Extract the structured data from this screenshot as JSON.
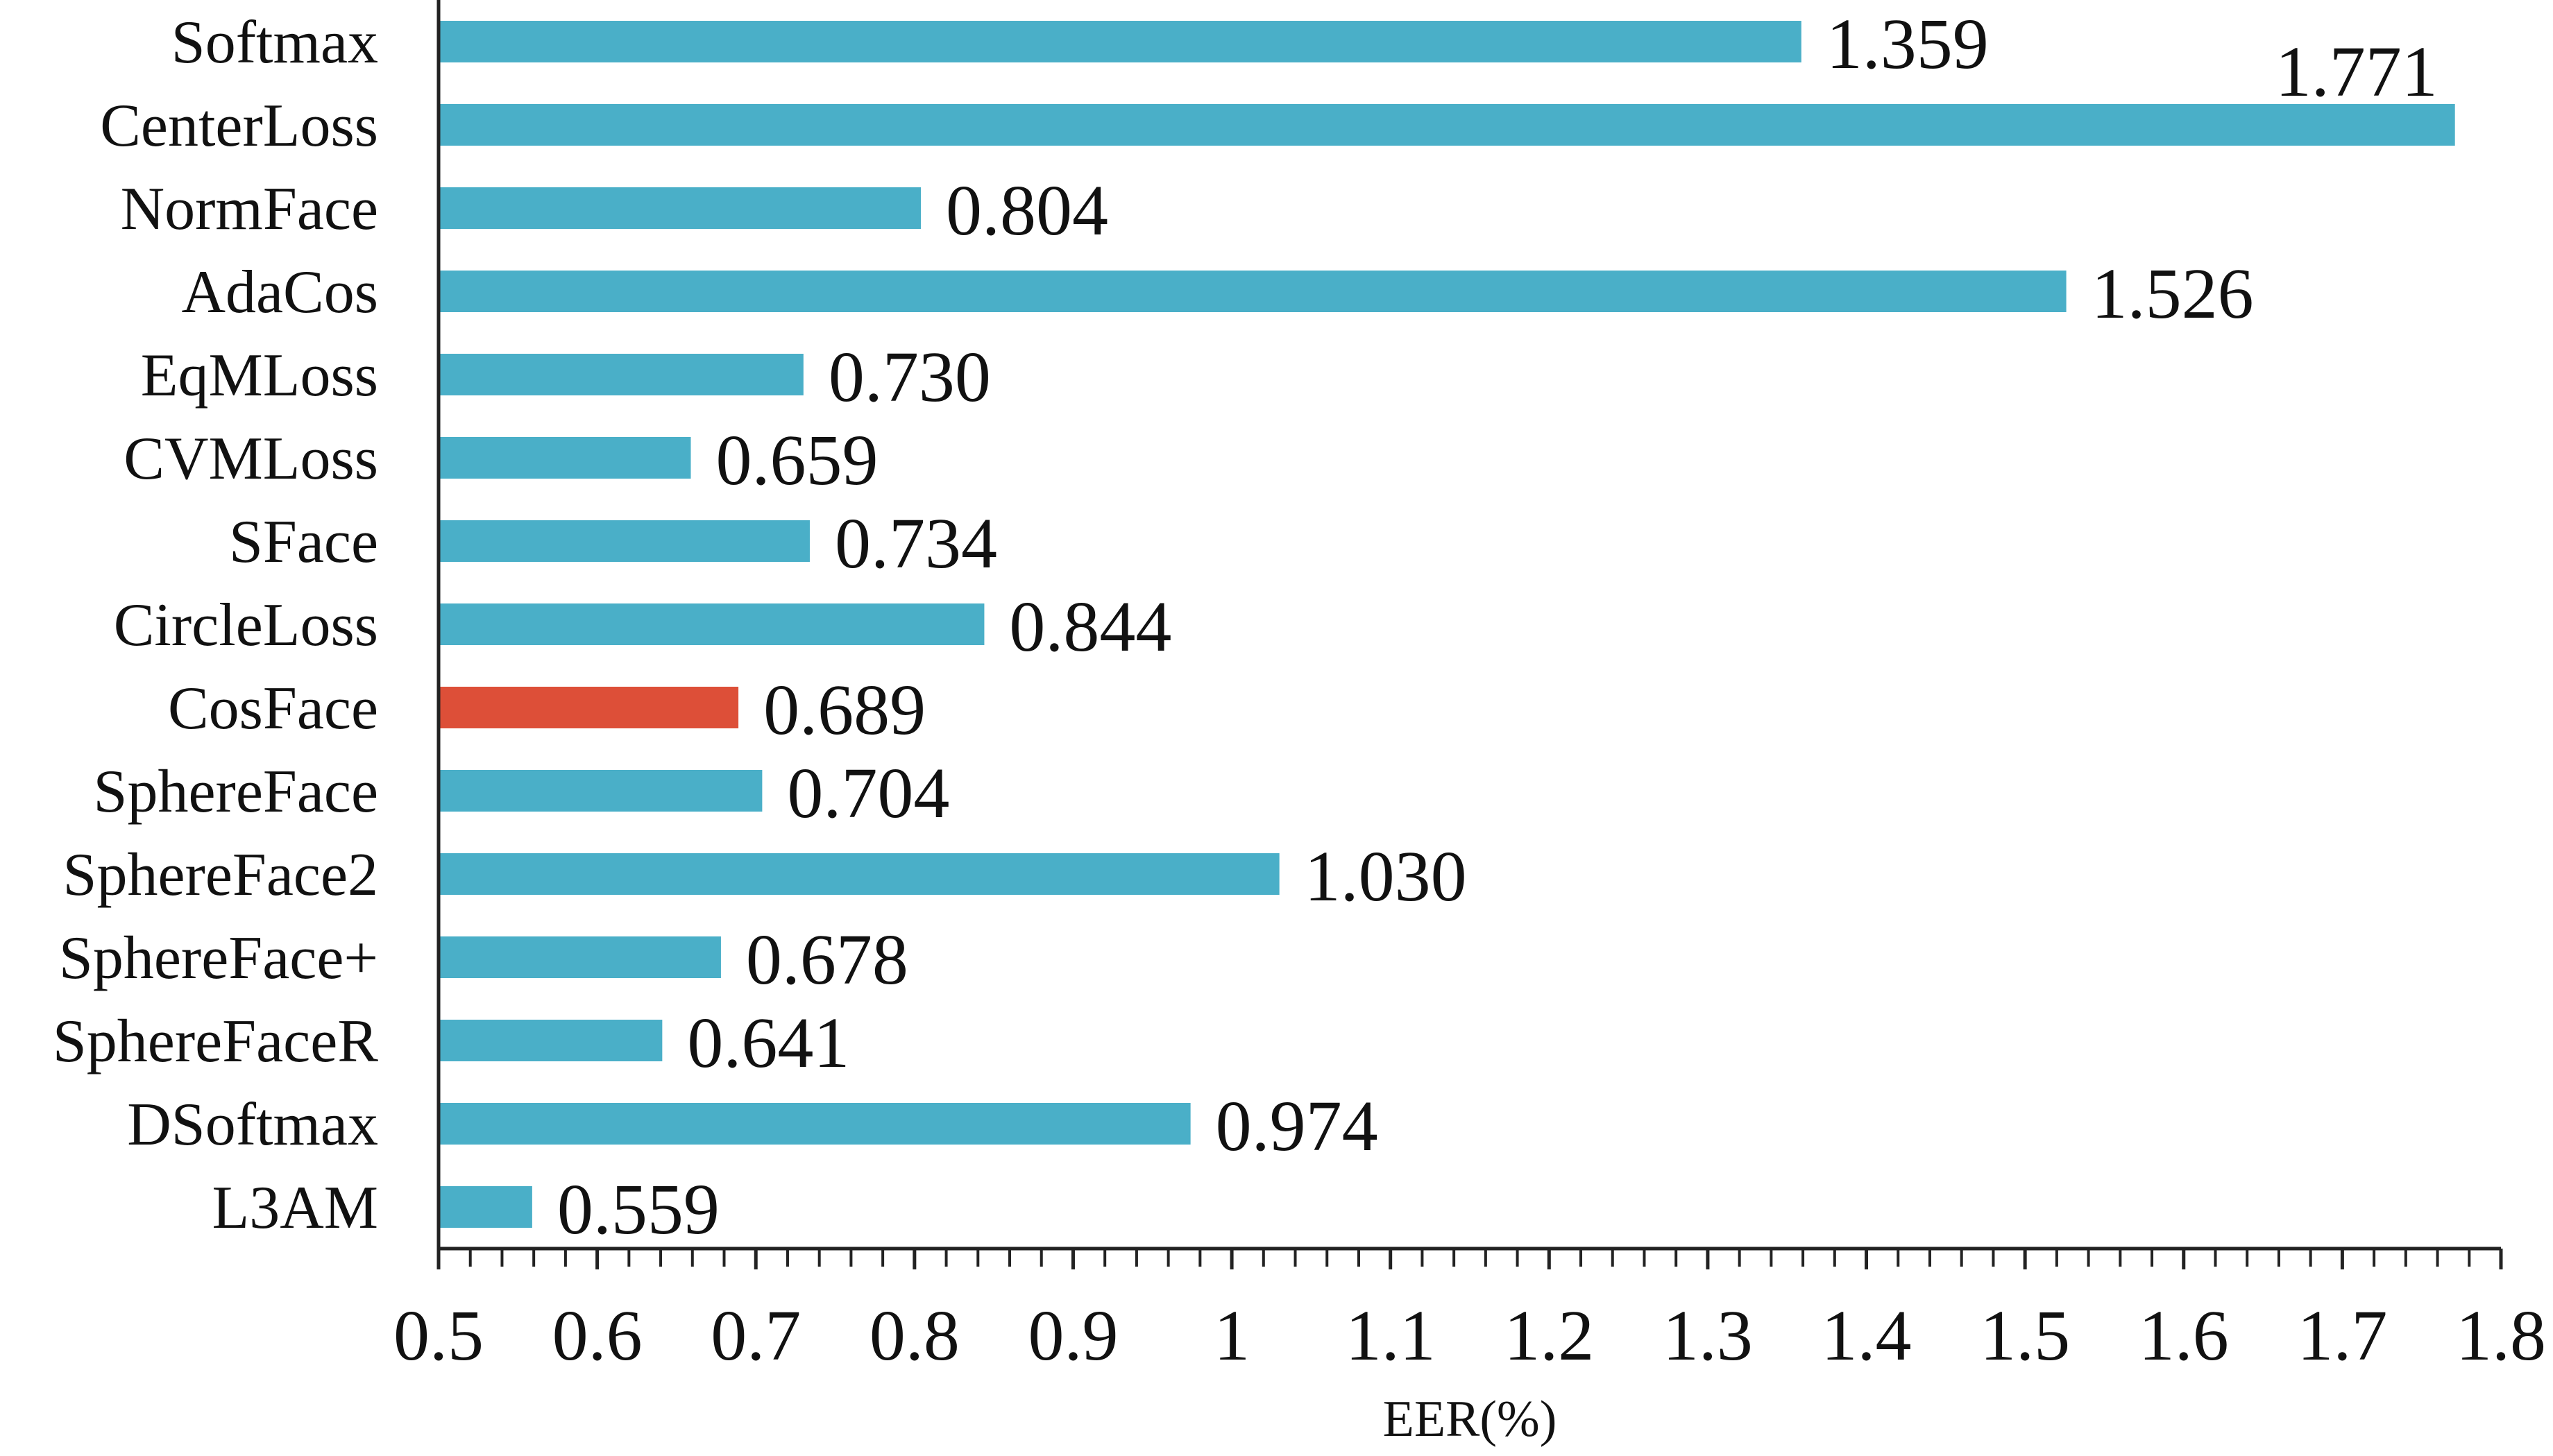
{
  "chart_data": {
    "type": "bar",
    "orientation": "horizontal",
    "categories": [
      "Softmax",
      "CenterLoss",
      "NormFace",
      "AdaCos",
      "EqMLoss",
      "CVMLoss",
      "SFace",
      "CircleLoss",
      "CosFace",
      "SphereFace",
      "SphereFace2",
      "SphereFace+",
      "SphereFaceR",
      "DSoftmax",
      "L3AM"
    ],
    "values": [
      1.359,
      1.771,
      0.804,
      1.526,
      0.73,
      0.659,
      0.734,
      0.844,
      0.689,
      0.704,
      1.03,
      0.678,
      0.641,
      0.974,
      0.559
    ],
    "value_labels": [
      "1.359",
      "1.771",
      "0.804",
      "1.526",
      "0.730",
      "0.659",
      "0.734",
      "0.844",
      "0.689",
      "0.704",
      "1.030",
      "0.678",
      "0.641",
      "0.974",
      "0.559"
    ],
    "highlight_category": "CosFace",
    "xlabel": "EER(%)",
    "ylabel": "",
    "xlim": [
      0.5,
      1.8
    ],
    "x_ticks": [
      "0.5",
      "0.6",
      "0.7",
      "0.8",
      "0.9",
      "1",
      "1.1",
      "1.2",
      "1.3",
      "1.4",
      "1.5",
      "1.6",
      "1.7",
      "1.8"
    ],
    "minor_ticks_per_major": 5,
    "grid": false,
    "colors": {
      "bar": "#4aafc8",
      "highlight": "#dd4f38",
      "axis": "#222222"
    }
  }
}
